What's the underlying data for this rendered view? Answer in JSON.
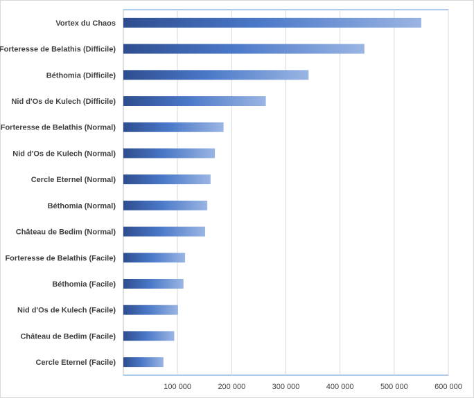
{
  "chart_data": {
    "type": "bar",
    "orientation": "horizontal",
    "categories": [
      "Vortex du Chaos",
      "Forteresse de Belathis (Difficile)",
      "Béthomia (Difficile)",
      "Nid d'Os de Kulech (Difficile)",
      "Forteresse de Belathis (Normal)",
      "Nid d'Os de Kulech (Normal)",
      "Cercle Eternel (Normal)",
      "Béthomia (Normal)",
      "Château de Bedim (Normal)",
      "Forteresse de Belathis (Facile)",
      "Béthomia (Facile)",
      "Nid d'Os de Kulech (Facile)",
      "Château de Bedim (Facile)",
      "Cercle Eternel (Facile)"
    ],
    "values": [
      550000,
      445000,
      342000,
      263000,
      185000,
      169000,
      161000,
      155000,
      151000,
      114000,
      111000,
      101000,
      94000,
      74000
    ],
    "xlim": [
      0,
      600000
    ],
    "xticks": [
      100000,
      200000,
      300000,
      400000,
      500000,
      600000
    ],
    "xtick_labels": [
      "100 000",
      "200 000",
      "300 000",
      "400 000",
      "500 000",
      "600 000"
    ],
    "grid": true,
    "title": "",
    "xlabel": "",
    "ylabel": "",
    "colors": {
      "gradient_start": "#2e4d8f",
      "gradient_mid": "#4a78c8",
      "gradient_end": "#9ab5e3",
      "grid": "#d9d9d9",
      "axis": "#bfbfbf",
      "plot_border": "#5b9bd5"
    }
  }
}
